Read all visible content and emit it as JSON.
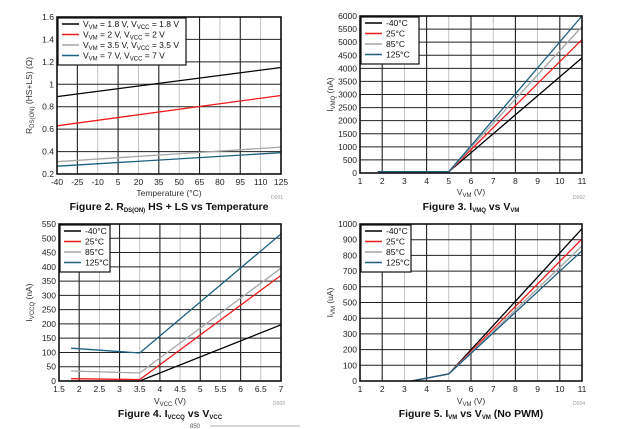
{
  "chart_data": [
    {
      "id": "fig2",
      "type": "line",
      "title": "Figure 2. R_DS(ON) HS + LS vs Temperature",
      "caption_parts": [
        "Figure 2. R",
        "DS(ON)",
        " HS + LS vs Temperature"
      ],
      "xlabel": "Temperature (°C)",
      "ylabel_parts": [
        "R",
        "DS(ON)",
        " (HS+LS) (Ω)"
      ],
      "code": "D001",
      "xlim": [
        -40,
        125
      ],
      "ylim": [
        0.2,
        1.6
      ],
      "xticks": [
        -40,
        -25,
        -10,
        5,
        20,
        35,
        50,
        65,
        80,
        95,
        110,
        125
      ],
      "yticks": [
        0.2,
        0.4,
        0.6,
        0.8,
        1,
        1.2,
        1.4,
        1.6
      ],
      "ytick_labels": [
        "0.2",
        "0.4",
        "0.6",
        "0.8",
        "1",
        "1.2",
        "1.4",
        "1.6"
      ],
      "grid": true,
      "legend_position": "top-left",
      "series": [
        {
          "name": "VVM = 1.8 V, VVCC = 1.8 V",
          "legend_parts": [
            "V",
            "VM",
            " = 1.8 V, V",
            "VCC",
            " = 1.8 V"
          ],
          "color": "#000000",
          "x": [
            -40,
            125
          ],
          "y": [
            0.89,
            1.15
          ]
        },
        {
          "name": "VVM = 2 V, VVCC = 2 V",
          "legend_parts": [
            "V",
            "VM",
            " = 2 V, V",
            "VCC",
            " = 2 V"
          ],
          "color": "#ee1c1c",
          "x": [
            -40,
            125
          ],
          "y": [
            0.63,
            0.9
          ]
        },
        {
          "name": "VVM = 3.5 V, VVCC = 3.5 V",
          "legend_parts": [
            "V",
            "VM",
            " = 3.5 V, V",
            "VCC",
            " = 3.5 V"
          ],
          "color": "#a6a6a6",
          "x": [
            -40,
            125
          ],
          "y": [
            0.31,
            0.44
          ]
        },
        {
          "name": "VVM = 7 V, VVCC = 7 V",
          "legend_parts": [
            "V",
            "VM",
            " = 7 V, V",
            "VCC",
            " = 7 V"
          ],
          "color": "#1f5f7f",
          "x": [
            -40,
            125
          ],
          "y": [
            0.27,
            0.39
          ]
        }
      ]
    },
    {
      "id": "fig3",
      "type": "line",
      "title": "Figure 3. I_VMQ vs V_VM",
      "caption_parts": [
        "Figure 3. I",
        "VMQ",
        " vs V",
        "VM",
        ""
      ],
      "xlabel_parts": [
        "V",
        "VM",
        " (V)"
      ],
      "ylabel_parts": [
        "I",
        "VMQ",
        " (nA)"
      ],
      "code": "D002",
      "xlim": [
        1,
        11
      ],
      "ylim": [
        0,
        6000
      ],
      "xticks": [
        1,
        2,
        3,
        4,
        5,
        6,
        7,
        8,
        9,
        10,
        11
      ],
      "yticks": [
        0,
        500,
        1000,
        1500,
        2000,
        2500,
        3000,
        3500,
        4000,
        4500,
        5000,
        5500,
        6000
      ],
      "ytick_labels": [
        "0",
        "500",
        "1000",
        "1500",
        "2000",
        "2500",
        "3000",
        "3500",
        "4000",
        "4500",
        "5000",
        "5500",
        "6000"
      ],
      "grid": true,
      "legend_position": "top-left",
      "series": [
        {
          "name": "-40°C",
          "color": "#000000",
          "x": [
            1.8,
            5,
            11
          ],
          "y": [
            50,
            50,
            4400
          ]
        },
        {
          "name": "25°C",
          "color": "#ee1c1c",
          "x": [
            1.8,
            5,
            11
          ],
          "y": [
            50,
            50,
            5100
          ]
        },
        {
          "name": "85°C",
          "color": "#a6a6a6",
          "x": [
            1.8,
            5,
            11
          ],
          "y": [
            50,
            50,
            5600
          ]
        },
        {
          "name": "125°C",
          "color": "#1f5f7f",
          "x": [
            1.8,
            5,
            11
          ],
          "y": [
            50,
            50,
            6000
          ]
        }
      ]
    },
    {
      "id": "fig4",
      "type": "line",
      "title": "Figure 4. I_VCCQ vs V_VCC",
      "caption_parts": [
        "Figure 4. I",
        "VCCQ",
        " vs V",
        "VCC",
        ""
      ],
      "xlabel_parts": [
        "V",
        "VCC",
        " (V)"
      ],
      "ylabel_parts": [
        "I",
        "VCCQ",
        " (nA)"
      ],
      "code": "D003",
      "xlim": [
        1.5,
        7
      ],
      "ylim": [
        0,
        550
      ],
      "xticks": [
        1.5,
        2,
        2.5,
        3,
        3.5,
        4,
        4.5,
        5,
        5.5,
        6,
        6.5,
        7
      ],
      "yticks": [
        0,
        50,
        100,
        150,
        200,
        250,
        300,
        350,
        400,
        450,
        500,
        550
      ],
      "ytick_labels": [
        "0",
        "50",
        "100",
        "150",
        "200",
        "250",
        "300",
        "350",
        "400",
        "450",
        "500",
        "550"
      ],
      "grid": true,
      "legend_position": "top-left",
      "series": [
        {
          "name": "-40°C",
          "color": "#000000",
          "x": [
            1.8,
            3.5,
            7
          ],
          "y": [
            0,
            0,
            197
          ]
        },
        {
          "name": "25°C",
          "color": "#ee1c1c",
          "x": [
            1.8,
            3.5,
            7
          ],
          "y": [
            8,
            5,
            370
          ]
        },
        {
          "name": "85°C",
          "color": "#a6a6a6",
          "x": [
            1.8,
            3.5,
            7
          ],
          "y": [
            35,
            28,
            395
          ]
        },
        {
          "name": "125°C",
          "color": "#1f5f7f",
          "x": [
            1.8,
            3.5,
            7
          ],
          "y": [
            115,
            98,
            515
          ]
        }
      ]
    },
    {
      "id": "fig5",
      "type": "line",
      "title": "Figure 5. I_VM vs V_VM (No PWM)",
      "caption_parts": [
        "Figure 5. I",
        "VM",
        " vs V",
        "VM",
        " (No PWM)"
      ],
      "xlabel_parts": [
        "V",
        "VM",
        " (V)"
      ],
      "ylabel_parts": [
        "I",
        "VM",
        " (uA)"
      ],
      "code": "D004",
      "xlim": [
        1,
        11
      ],
      "ylim": [
        0,
        1000
      ],
      "xticks": [
        1,
        2,
        3,
        4,
        5,
        6,
        7,
        8,
        9,
        10,
        11
      ],
      "yticks": [
        0,
        100,
        200,
        300,
        400,
        500,
        600,
        700,
        800,
        900,
        1000
      ],
      "ytick_labels": [
        "0",
        "100",
        "200",
        "300",
        "400",
        "500",
        "600",
        "700",
        "800",
        "900",
        "1000"
      ],
      "grid": true,
      "legend_position": "top-left",
      "series": [
        {
          "name": "-40°C",
          "color": "#000000",
          "x": [
            3.3,
            4,
            5,
            11
          ],
          "y": [
            0,
            18,
            45,
            970
          ]
        },
        {
          "name": "25°C",
          "color": "#ee1c1c",
          "x": [
            3.3,
            4,
            5,
            11
          ],
          "y": [
            0,
            18,
            45,
            905
          ]
        },
        {
          "name": "85°C",
          "color": "#a6a6a6",
          "x": [
            3.3,
            4,
            5,
            11
          ],
          "y": [
            0,
            18,
            45,
            860
          ]
        },
        {
          "name": "125°C",
          "color": "#1f5f7f",
          "x": [
            3.3,
            4,
            5,
            11
          ],
          "y": [
            0,
            18,
            45,
            830
          ]
        }
      ]
    }
  ],
  "footer_fragment": "850"
}
